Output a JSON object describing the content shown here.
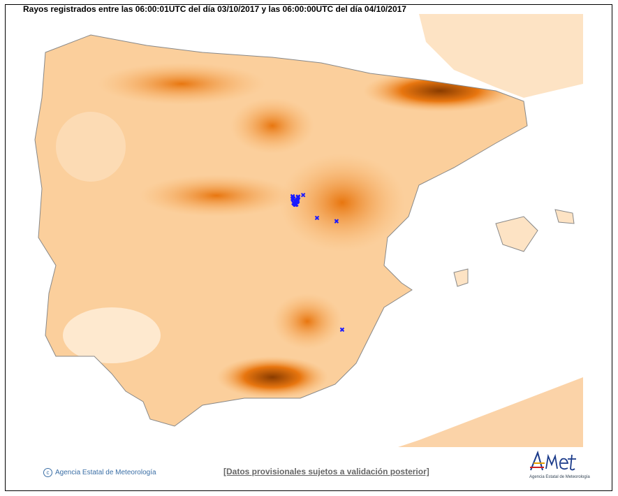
{
  "title": "Rayos registrados entre las 06:00:01UTC del día 03/10/2017 y las 06:00:00UTC del día 04/10/2017",
  "footer": {
    "copyright": "Agencia Estatal de Meteorología",
    "disclaimer": "[Datos provisionales sujetos a validación posterior]",
    "logo_text": "AEmet",
    "logo_subtext": "Agencia Estatal de Meteorología"
  },
  "colors": {
    "land_light": "#fde3c4",
    "land_mid": "#f9b46a",
    "land_high": "#e8760f",
    "land_peak": "#8a3c00",
    "sea": "#ffffff",
    "strike": "#1a1aff",
    "borders": "#888888"
  },
  "strike_marker": "x",
  "strikes": [
    {
      "lon": -3.1,
      "lat": 40.65,
      "count": 30
    },
    {
      "lon": -2.92,
      "lat": 40.75,
      "count": 1
    },
    {
      "lon": -2.6,
      "lat": 40.33,
      "count": 1
    },
    {
      "lon": -2.15,
      "lat": 40.27,
      "count": 1
    },
    {
      "lon": -2.02,
      "lat": 38.28,
      "count": 1
    }
  ]
}
